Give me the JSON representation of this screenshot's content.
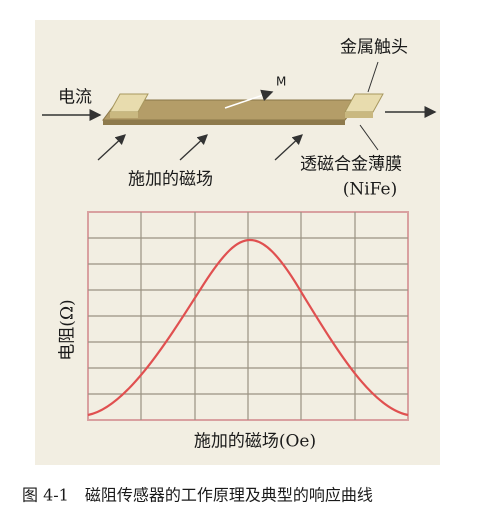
{
  "diagram": {
    "labels": {
      "contact": "金属触头",
      "current": "电流",
      "magnetization": "M",
      "applied_field": "施加的磁场",
      "film": "透磁合金薄膜",
      "film_material": "(NiFe)"
    },
    "chart": {
      "y_label": "电阻(Ω)",
      "x_label": "施加的磁场(Oe)"
    }
  },
  "caption": "图 4-1　磁阻传感器的工作原理及典型的响应曲线"
}
